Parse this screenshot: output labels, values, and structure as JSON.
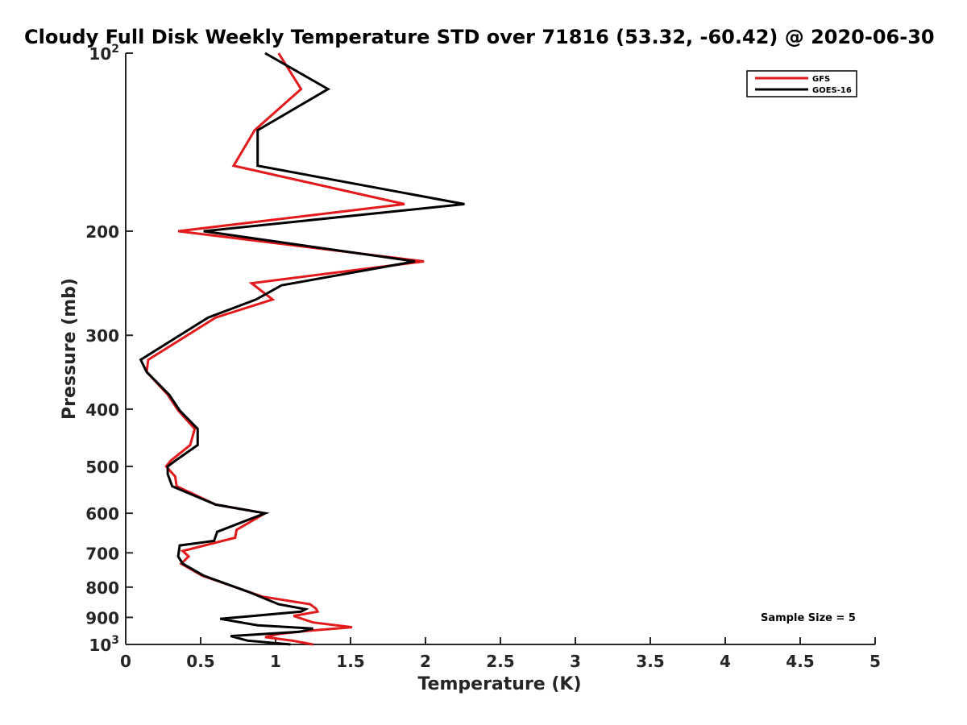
{
  "chart_data": {
    "type": "line",
    "title": "Cloudy Full Disk Weekly Temperature STD over 71816 (53.32, -60.42) @ 2020-06-30",
    "xlabel": "Temperature (K)",
    "ylabel": "Pressure (mb)",
    "xlim": [
      0,
      5
    ],
    "ylim": [
      100,
      1000
    ],
    "y_scale": "log",
    "y_reversed": true,
    "x_ticks": [
      "0",
      "0.5",
      "1",
      "1.5",
      "2",
      "2.5",
      "3",
      "3.5",
      "4",
      "4.5",
      "5"
    ],
    "y_ticks": [
      {
        "value": 100,
        "base": "10",
        "exp": "2"
      },
      {
        "value": 200,
        "label": "200"
      },
      {
        "value": 300,
        "label": "300"
      },
      {
        "value": 400,
        "label": "400"
      },
      {
        "value": 500,
        "label": "500"
      },
      {
        "value": 600,
        "label": "600"
      },
      {
        "value": 700,
        "label": "700"
      },
      {
        "value": 800,
        "label": "800"
      },
      {
        "value": 900,
        "label": "900"
      },
      {
        "value": 1000,
        "base": "10",
        "exp": "3"
      }
    ],
    "grid": false,
    "legend_position": "top-right",
    "annotation": "Sample Size = 5",
    "series": [
      {
        "name": "GFS",
        "color": "#e31a1c",
        "points": [
          [
            1.02,
            100
          ],
          [
            1.17,
            115
          ],
          [
            0.86,
            135
          ],
          [
            0.72,
            155
          ],
          [
            1.86,
            180
          ],
          [
            0.35,
            200
          ],
          [
            1.99,
            225
          ],
          [
            0.84,
            245
          ],
          [
            0.98,
            261
          ],
          [
            0.6,
            280
          ],
          [
            0.15,
            330
          ],
          [
            0.14,
            346
          ],
          [
            0.28,
            378
          ],
          [
            0.35,
            402
          ],
          [
            0.46,
            432
          ],
          [
            0.43,
            460
          ],
          [
            0.3,
            489
          ],
          [
            0.27,
            500
          ],
          [
            0.33,
            520
          ],
          [
            0.34,
            540
          ],
          [
            0.6,
            580
          ],
          [
            0.93,
            600
          ],
          [
            0.74,
            640
          ],
          [
            0.73,
            660
          ],
          [
            0.38,
            695
          ],
          [
            0.42,
            710
          ],
          [
            0.37,
            730
          ],
          [
            0.51,
            765
          ],
          [
            0.91,
            830
          ],
          [
            1.23,
            855
          ],
          [
            1.27,
            870
          ],
          [
            1.28,
            880
          ],
          [
            1.12,
            895
          ],
          [
            1.25,
            918
          ],
          [
            1.51,
            935
          ],
          [
            1.22,
            948
          ],
          [
            1.02,
            960
          ],
          [
            0.93,
            972
          ],
          [
            1.11,
            985
          ],
          [
            1.25,
            1000
          ]
        ]
      },
      {
        "name": "GOES-16",
        "color": "#000000",
        "points": [
          [
            0.93,
            100
          ],
          [
            1.35,
            115
          ],
          [
            0.88,
            135
          ],
          [
            0.88,
            155
          ],
          [
            2.26,
            180
          ],
          [
            0.52,
            200
          ],
          [
            1.93,
            225
          ],
          [
            1.04,
            247
          ],
          [
            0.87,
            261
          ],
          [
            0.55,
            280
          ],
          [
            0.1,
            330
          ],
          [
            0.14,
            346
          ],
          [
            0.29,
            378
          ],
          [
            0.36,
            402
          ],
          [
            0.48,
            432
          ],
          [
            0.48,
            460
          ],
          [
            0.33,
            489
          ],
          [
            0.28,
            500
          ],
          [
            0.28,
            515
          ],
          [
            0.31,
            540
          ],
          [
            0.6,
            580
          ],
          [
            0.93,
            600
          ],
          [
            0.61,
            645
          ],
          [
            0.59,
            668
          ],
          [
            0.36,
            680
          ],
          [
            0.35,
            710
          ],
          [
            0.38,
            730
          ],
          [
            0.52,
            765
          ],
          [
            0.82,
            815
          ],
          [
            1.02,
            855
          ],
          [
            1.2,
            872
          ],
          [
            1.17,
            880
          ],
          [
            0.63,
            905
          ],
          [
            0.88,
            928
          ],
          [
            1.25,
            940
          ],
          [
            1.16,
            952
          ],
          [
            0.7,
            968
          ],
          [
            0.81,
            985
          ],
          [
            1.1,
            1000
          ]
        ]
      }
    ]
  }
}
